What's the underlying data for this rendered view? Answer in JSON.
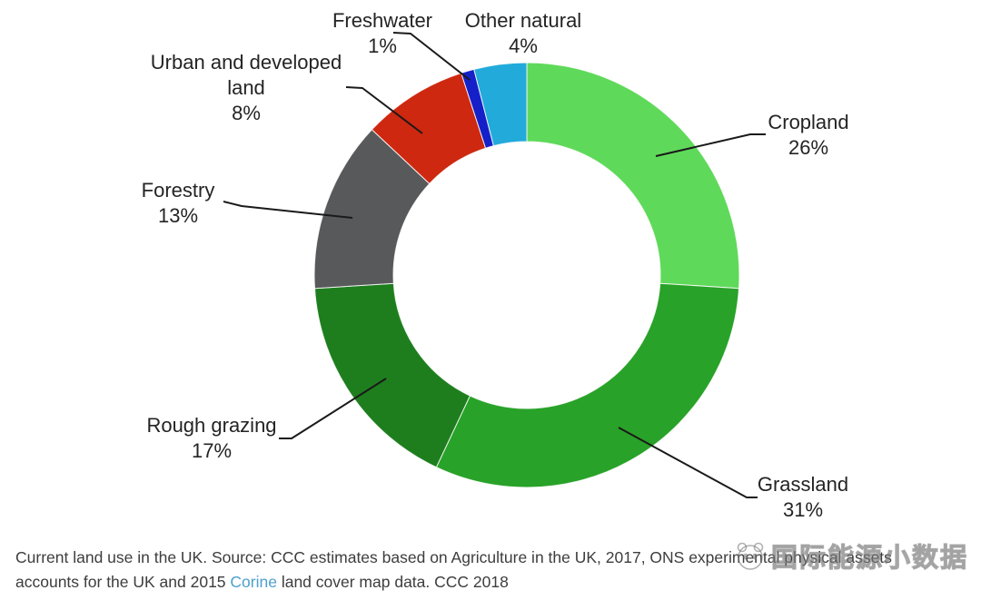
{
  "chart_data": {
    "type": "pie",
    "subtype": "donut",
    "title": "Current land use in the UK",
    "direction": "clockwise",
    "start_angle_deg": 0,
    "inner_radius_ratio": 0.63,
    "legend_position": "outside-callouts",
    "segments": [
      {
        "label": "Cropland",
        "value": 26,
        "pct": "26%",
        "color": "#5FD95A"
      },
      {
        "label": "Grassland",
        "value": 31,
        "pct": "31%",
        "color": "#28A228"
      },
      {
        "label": "Rough grazing",
        "value": 17,
        "pct": "17%",
        "color": "#1E7E1E"
      },
      {
        "label": "Forestry",
        "value": 13,
        "pct": "13%",
        "color": "#58595B"
      },
      {
        "label": "Urban and developed land",
        "value": 8,
        "pct": "8%",
        "color": "#CE2810"
      },
      {
        "label": "Freshwater",
        "value": 1,
        "pct": "1%",
        "color": "#1520C8"
      },
      {
        "label": "Other natural",
        "value": 4,
        "pct": "4%",
        "color": "#22AADB"
      }
    ]
  },
  "caption": {
    "line1": "Current land use in the UK. Source: CCC estimates based on Agriculture in the UK, 2017, ONS experimental physical assets",
    "line2_before_link": "accounts for the UK and 2015 ",
    "link_text": "Corine",
    "line2_after_link": " land cover map data. CCC 2018",
    "link_color": "#4d9fce",
    "text_color": "#3d3d3d"
  },
  "watermark": {
    "text": "国际能源小数据"
  }
}
